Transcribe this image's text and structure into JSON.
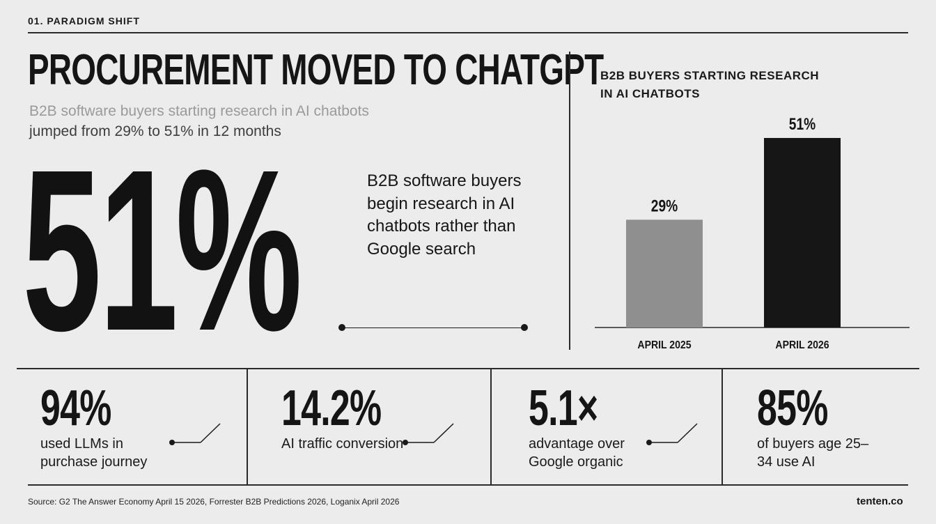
{
  "header": {
    "section_label": "01. PARADIGM SHIFT",
    "title": "PROCUREMENT MOVED TO CHATGPT",
    "subtitle_line1": "B2B software buyers starting research in AI chatbots",
    "subtitle_line2": "jumped from 29% to 51% in 12 months"
  },
  "hero": {
    "value": "51%",
    "description": "B2B software buyers begin research in AI chatbots rather than Google search"
  },
  "chart_data": {
    "type": "bar",
    "title": "B2B BUYERS STARTING RESEARCH IN AI CHATBOTS",
    "categories": [
      "APRIL 2025",
      "APRIL 2026"
    ],
    "values": [
      29,
      51
    ],
    "value_labels": [
      "29%",
      "51%"
    ],
    "bar_colors": [
      "#8f8f8f",
      "#161616"
    ],
    "ylim": [
      0,
      51
    ],
    "grid": false,
    "xlabel": "",
    "ylabel": ""
  },
  "stats": [
    {
      "value": "94%",
      "label": "used LLMs in purchase journey"
    },
    {
      "value": "14.2%",
      "label": "AI traffic conversion"
    },
    {
      "value": "5.1×",
      "label": "advantage over Google organic"
    },
    {
      "value": "85%",
      "label": "of buyers age 25–34 use AI"
    }
  ],
  "footer": {
    "source": "Source: G2 The Answer Economy April 15 2026, Forrester B2B Predictions 2026, Loganix April 2026",
    "brand": "tenten.co"
  },
  "colors": {
    "background": "#ececec",
    "ink": "#161616",
    "muted_text": "#9a9a9a",
    "bar_2025": "#8f8f8f",
    "bar_2026": "#161616"
  }
}
